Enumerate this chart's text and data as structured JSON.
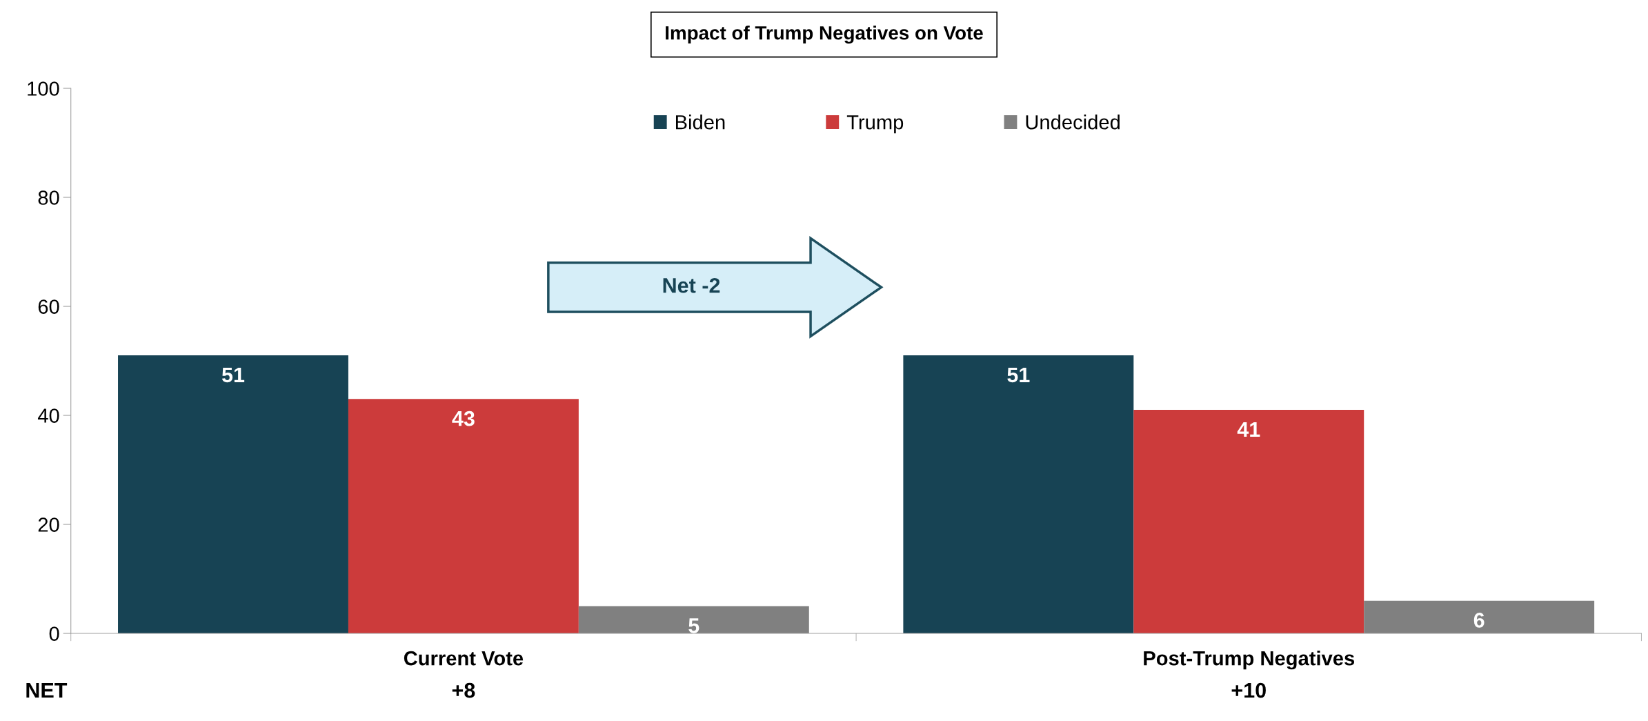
{
  "chart_data": {
    "type": "bar",
    "title": "Impact of Trump Negatives on Vote",
    "categories": [
      "Current Vote",
      "Post-Trump Negatives"
    ],
    "series": [
      {
        "name": "Biden",
        "color": "#174354",
        "values": [
          51,
          51
        ]
      },
      {
        "name": "Trump",
        "color": "#cc3b3b",
        "values": [
          43,
          41
        ]
      },
      {
        "name": "Undecided",
        "color": "#808080",
        "values": [
          5,
          6
        ]
      }
    ],
    "ylim": [
      0,
      100
    ],
    "yticks": [
      0,
      20,
      40,
      60,
      80,
      100
    ],
    "data_labels": true,
    "legend": "top",
    "grid": false,
    "annotations": [
      "Net -2",
      "NET",
      "+8",
      "+10"
    ]
  }
}
